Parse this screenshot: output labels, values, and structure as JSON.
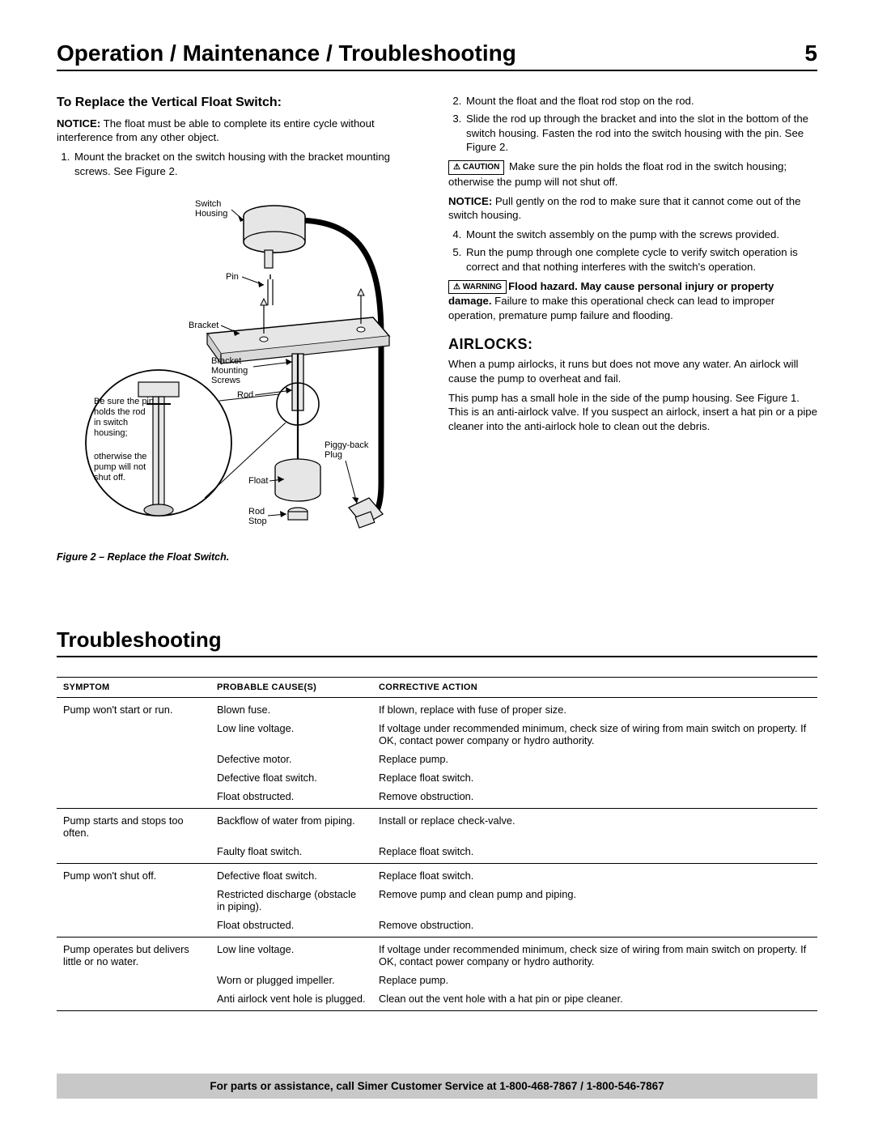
{
  "header": {
    "title": "Operation / Maintenance / Troubleshooting",
    "page": "5"
  },
  "left": {
    "subhead": "To Replace the Vertical Float Switch:",
    "notice_label": "NOTICE:",
    "notice_text": " The float must be able to complete its entire cycle without interference from any other object.",
    "step1": "Mount the bracket on the switch housing with the bracket mounting screws. See Figure 2.",
    "caption": "Figure 2 – Replace the Float Switch.",
    "diagram": {
      "switch_housing": "Switch Housing",
      "pin": "Pin",
      "bracket": "Bracket",
      "bracket_mounting_screws": "Bracket Mounting Screws",
      "rod": "Rod",
      "float": "Float",
      "rod_stop": "Rod Stop",
      "piggyback_plug": "Piggy-back Plug",
      "callout1": "Be sure the pin holds the rod in switch housing;",
      "callout2": "otherwise the pump will not shut off."
    }
  },
  "right": {
    "step2": "Mount the float and the float rod stop on the rod.",
    "step3": "Slide the rod up through the bracket and into the slot in the bottom of the switch housing. Fasten the rod into the switch housing with the pin. See Figure 2.",
    "caution_badge": "CAUTION",
    "caution_text": " Make sure the pin holds the float rod in the switch housing; otherwise the pump will not shut off.",
    "notice_label": "NOTICE:",
    "notice_text": " Pull gently on the rod to make sure that it cannot come out of the switch housing.",
    "step4": "Mount the switch assembly on the pump with the screws provided.",
    "step5": "Run the pump through one complete cycle to verify switch operation is correct and that nothing interferes with the switch's operation.",
    "warning_badge": "WARNING",
    "warning_bold": "Flood hazard. May cause personal injury or property damage.",
    "warning_text": " Failure to make this operational check can lead to improper operation, premature pump failure and flooding.",
    "airlocks_title": "AIRLOCKS:",
    "airlocks_p1": "When a pump airlocks, it runs but does not move any water. An airlock will cause the pump to overheat and fail.",
    "airlocks_p2": "This pump has a small hole in the side of the pump housing. See Figure 1. This is an anti-airlock valve. If you suspect an airlock, insert a hat pin or a pipe cleaner into the anti-airlock hole to clean out the debris."
  },
  "troubleshooting": {
    "title": "Troubleshooting",
    "columns": {
      "c1": "SYMPTOM",
      "c2": "PROBABLE CAUSE(S)",
      "c3": "CORRECTIVE ACTION"
    },
    "rows": [
      {
        "symptom": "Pump won't start or run.",
        "items": [
          {
            "cause": "Blown fuse.",
            "action": "If blown, replace with fuse of proper size."
          },
          {
            "cause": "Low line voltage.",
            "action": "If voltage under recommended minimum, check size of wiring from main switch on property. If OK, contact power company or hydro authority."
          },
          {
            "cause": "Defective motor.",
            "action": "Replace pump."
          },
          {
            "cause": "Defective float switch.",
            "action": "Replace float switch."
          },
          {
            "cause": "Float obstructed.",
            "action": "Remove obstruction."
          }
        ]
      },
      {
        "symptom": "Pump starts and stops too often.",
        "items": [
          {
            "cause": "Backflow of water from piping.",
            "action": "Install or replace check-valve."
          },
          {
            "cause": "Faulty float switch.",
            "action": "Replace float switch."
          }
        ]
      },
      {
        "symptom": "Pump won't shut off.",
        "items": [
          {
            "cause": "Defective float switch.",
            "action": "Replace float switch."
          },
          {
            "cause": "Restricted discharge (obstacle in piping).",
            "action": "Remove pump and clean pump and piping."
          },
          {
            "cause": "Float obstructed.",
            "action": "Remove obstruction."
          }
        ]
      },
      {
        "symptom": "Pump operates but delivers little or no water.",
        "items": [
          {
            "cause": "Low line voltage.",
            "action": "If voltage under recommended minimum, check size of wiring from main switch on property. If OK, contact power company or hydro authority."
          },
          {
            "cause": "Worn or plugged impeller.",
            "action": "Replace pump."
          },
          {
            "cause": "Anti airlock vent hole is plugged.",
            "action": "Clean out the vent hole with a hat pin or pipe cleaner."
          }
        ]
      }
    ]
  },
  "footer": "For parts or assistance, call Simer Customer Service at 1-800-468-7867 / 1-800-546-7867"
}
